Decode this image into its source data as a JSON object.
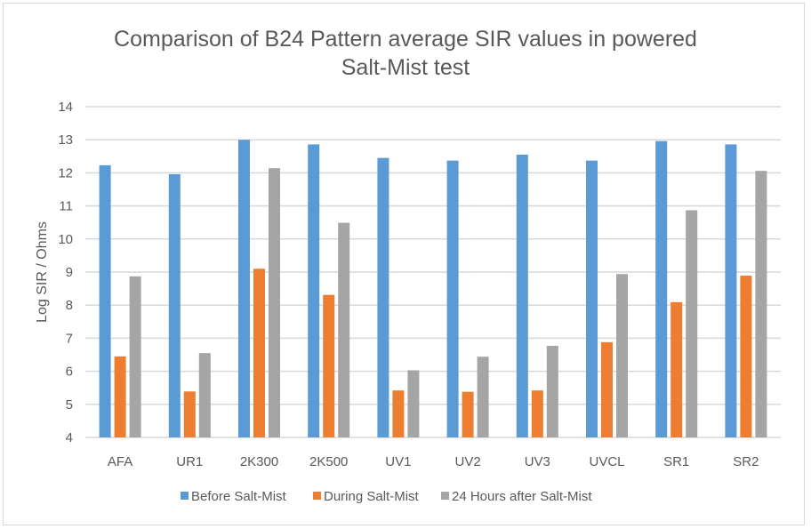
{
  "chart_data": {
    "type": "bar",
    "title": "Comparison of B24 Pattern average SIR values in powered Salt-Mist test",
    "title_lines": [
      "Comparison of B24 Pattern average SIR values in powered",
      "Salt-Mist test"
    ],
    "xlabel": "",
    "ylabel": "Log SIR / Ohms",
    "ylim": [
      4,
      14
    ],
    "yticks": [
      4,
      5,
      6,
      7,
      8,
      9,
      10,
      11,
      12,
      13,
      14
    ],
    "grid": true,
    "legend_position": "bottom",
    "categories": [
      "AFA",
      "UR1",
      "2K300",
      "2K500",
      "UV1",
      "UV2",
      "UV3",
      "UVCL",
      "SR1",
      "SR2"
    ],
    "series": [
      {
        "name": "Before Salt-Mist",
        "color": "#5b9bd5",
        "values": [
          12.23,
          11.96,
          13.0,
          12.86,
          12.45,
          12.37,
          12.55,
          12.37,
          12.96,
          12.86
        ]
      },
      {
        "name": "During Salt-Mist",
        "color": "#ed7d31",
        "values": [
          6.45,
          5.39,
          9.1,
          8.31,
          5.42,
          5.38,
          5.42,
          6.88,
          8.09,
          8.89
        ]
      },
      {
        "name": "24 Hours after Salt-Mist",
        "color": "#a5a5a5",
        "values": [
          8.87,
          6.55,
          12.14,
          10.49,
          6.03,
          6.44,
          6.77,
          8.94,
          10.87,
          12.06
        ]
      }
    ]
  }
}
